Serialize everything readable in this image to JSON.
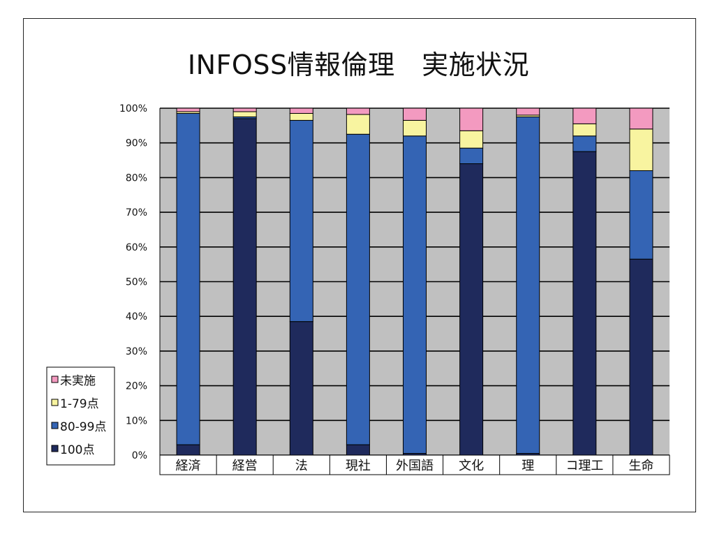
{
  "chart_data": {
    "type": "bar",
    "stacked": true,
    "percent": true,
    "title": "INFOSS情報倫理　実施状況",
    "xlabel": "",
    "ylabel": "",
    "ylim": [
      0,
      100
    ],
    "y_ticks": [
      "0%",
      "10%",
      "20%",
      "30%",
      "40%",
      "50%",
      "60%",
      "70%",
      "80%",
      "90%",
      "100%"
    ],
    "grid": true,
    "legend_position": "left-bottom",
    "categories": [
      "経済",
      "経営",
      "法",
      "現社",
      "外国語",
      "文化",
      "理",
      "コ理工",
      "生命"
    ],
    "series": [
      {
        "name": "100点",
        "color": "#1f2a5c",
        "values": [
          3.0,
          97.0,
          38.5,
          3.0,
          0.5,
          84.0,
          0.5,
          87.5,
          56.5
        ]
      },
      {
        "name": "80-99点",
        "color": "#3464b4",
        "values": [
          95.5,
          0.5,
          58.0,
          89.5,
          91.5,
          4.5,
          97.0,
          4.5,
          25.5
        ]
      },
      {
        "name": "1-79点",
        "color": "#f8f4a0",
        "values": [
          0.5,
          1.5,
          2.0,
          5.7,
          4.5,
          5.0,
          0.5,
          3.5,
          12.0
        ]
      },
      {
        "name": "未実施",
        "color": "#f39ac0",
        "values": [
          1.0,
          1.0,
          1.5,
          1.8,
          3.5,
          6.5,
          2.0,
          4.5,
          6.0
        ]
      }
    ],
    "plot_background": "#c0c0c0"
  }
}
